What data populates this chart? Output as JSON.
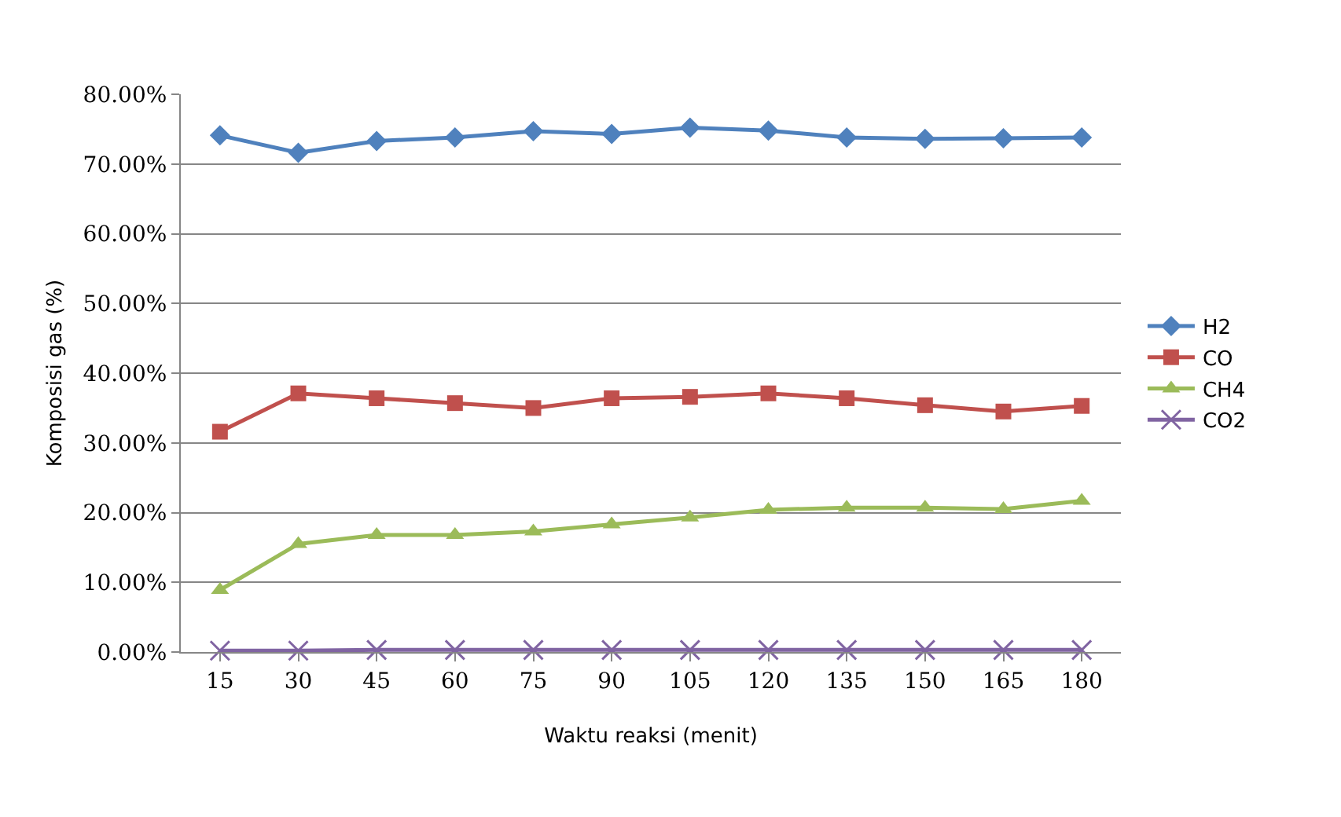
{
  "chart_data": {
    "type": "line",
    "xlabel": "Waktu reaksi (menit)",
    "ylabel": "Komposisi gas (%)",
    "categories": [
      "15",
      "30",
      "45",
      "60",
      "75",
      "90",
      "105",
      "120",
      "135",
      "150",
      "165",
      "180"
    ],
    "series": [
      {
        "name": "H2",
        "color": "#4f81bd",
        "marker": "diamond",
        "values": [
          74.1,
          71.6,
          73.3,
          73.8,
          74.7,
          74.3,
          75.2,
          74.8,
          73.8,
          73.6,
          73.7,
          73.8
        ]
      },
      {
        "name": "CO",
        "color": "#c0504d",
        "marker": "square",
        "values": [
          31.6,
          37.1,
          36.4,
          35.7,
          35.0,
          36.4,
          36.6,
          37.1,
          36.4,
          35.4,
          34.5,
          35.3
        ]
      },
      {
        "name": "CH4",
        "color": "#9bbb59",
        "marker": "triangle",
        "values": [
          8.9,
          15.5,
          16.8,
          16.8,
          17.3,
          18.3,
          19.3,
          20.4,
          20.7,
          20.7,
          20.5,
          21.7
        ]
      },
      {
        "name": "CO2",
        "color": "#8064a2",
        "marker": "cross",
        "values": [
          0.2,
          0.2,
          0.3,
          0.3,
          0.3,
          0.3,
          0.3,
          0.3,
          0.3,
          0.3,
          0.3,
          0.3
        ]
      }
    ],
    "ylim": [
      0,
      80
    ],
    "yticks": [
      {
        "value": 0,
        "label": "0.00%"
      },
      {
        "value": 10,
        "label": "10.00%"
      },
      {
        "value": 20,
        "label": "20.00%"
      },
      {
        "value": 30,
        "label": "30.00%"
      },
      {
        "value": 40,
        "label": "40.00%"
      },
      {
        "value": 50,
        "label": "50.00%"
      },
      {
        "value": 60,
        "label": "60.00%"
      },
      {
        "value": 70,
        "label": "70.00%"
      },
      {
        "value": 80,
        "label": "80.00%"
      }
    ],
    "grid": "y",
    "legend": "right",
    "line_style": "solid"
  }
}
